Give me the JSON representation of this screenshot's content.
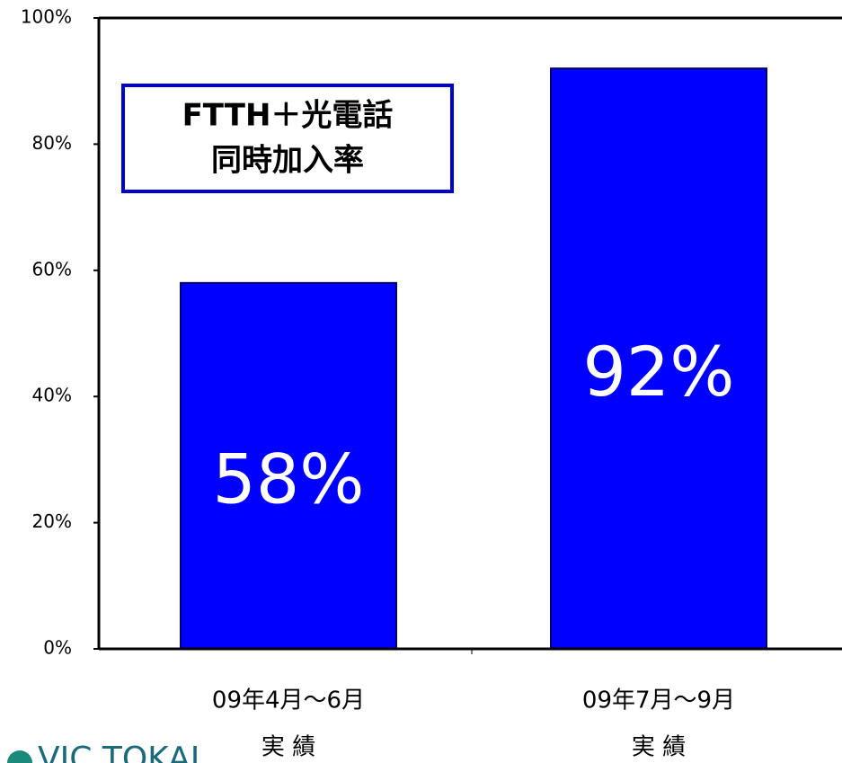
{
  "chart_data": {
    "type": "bar",
    "annotation_lines": [
      "FTTH＋光電話",
      "同時加入率"
    ],
    "categories": [
      [
        "09年4月～6月",
        "実 績"
      ],
      [
        "09年7月～9月",
        "実 績"
      ]
    ],
    "values": [
      58,
      92
    ],
    "value_labels": [
      "58%",
      "92%"
    ],
    "color": "#0000ff",
    "ylim": [
      0,
      100
    ],
    "yticks": [
      {
        "value": 0,
        "label": "0%"
      },
      {
        "value": 20,
        "label": "20%"
      },
      {
        "value": 40,
        "label": "40%"
      },
      {
        "value": 60,
        "label": "60%"
      },
      {
        "value": 80,
        "label": "80%"
      },
      {
        "value": 100,
        "label": "100%"
      }
    ],
    "footer": "VIC TOKAI"
  }
}
